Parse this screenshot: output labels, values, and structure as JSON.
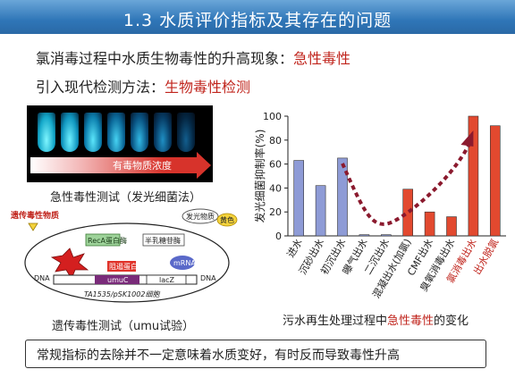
{
  "header": {
    "title": "1.3 水质评价指标及其存在的问题"
  },
  "intro": {
    "line1_prefix": "氯消毒过程中水质生物毒性的升高现象：",
    "line1_highlight": "急性毒性",
    "line2_prefix": "引入现代检测方法：",
    "line2_highlight": "生物毒性检测"
  },
  "acute_test": {
    "arrow_label": "有毒物质浓度",
    "caption": "急性毒性测试（发光细菌法）"
  },
  "genotox_test": {
    "caption": "遗传毒性测试（umu试验）",
    "labels": {
      "genotoxic": "遗传毒性物质",
      "luminescent": "发光物质",
      "yellow": "黄色",
      "reca": "RecA蛋白酶",
      "galactosidase": "半乳糖苷酶",
      "repressor": "阻遏蛋白",
      "mrna": "mRNA",
      "umuc": "umuC",
      "lacz": "lacZ",
      "dna_left": "DNA",
      "dna_right": "DNA",
      "strain": "TA1535/pSK1002细胞"
    }
  },
  "chart_data": {
    "type": "bar",
    "ylabel": "发光细菌抑制率(%)",
    "ylim": [
      0,
      100
    ],
    "yticks": [
      0,
      20,
      40,
      60,
      80,
      100
    ],
    "categories": [
      "进水",
      "沉砂出水",
      "初沉出水",
      "曝气出水",
      "二沉出水",
      "混凝出水(加氯)",
      "CMF出水",
      "臭氧消毒出水",
      "氯消毒出水",
      "出水脱氯"
    ],
    "values": [
      63,
      42,
      65,
      1,
      1,
      39,
      20,
      16,
      100,
      92
    ],
    "bar_colors": [
      "#8e9bd6",
      "#8e9bd6",
      "#8e9bd6",
      "#8e9bd6",
      "#8e9bd6",
      "#e2492f",
      "#e2492f",
      "#e2492f",
      "#e2492f",
      "#e2492f"
    ],
    "red_label_categories": [
      "氯消毒出水",
      "出水脱氯"
    ],
    "trend_color": "#8b1a2e"
  },
  "chart_caption": {
    "prefix": "污水再生处理过程中",
    "highlight": "急性毒性",
    "suffix": "的变化"
  },
  "conclusion": {
    "text": "常规指标的去除并不一定意味着水质变好，有时反而导致毒性升高"
  }
}
